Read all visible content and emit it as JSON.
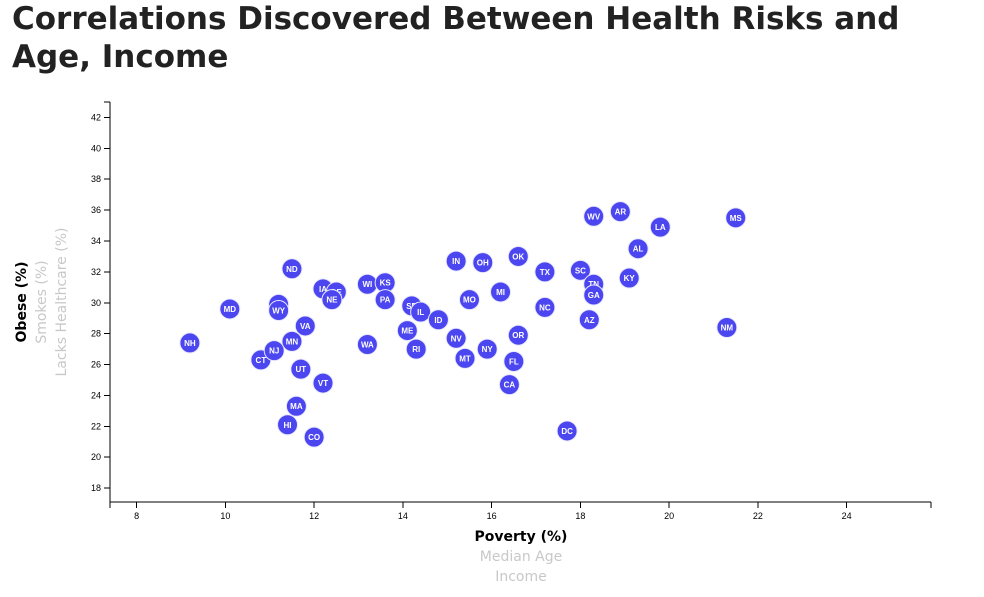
{
  "title": "Correlations Discovered Between Health Risks and Age, Income",
  "colors": {
    "marker": "#4b46f0",
    "active_label": "#000000",
    "inactive_label": "#c8c8c8"
  },
  "axes": {
    "x_labels": [
      {
        "text": "Poverty (%)",
        "active": true
      },
      {
        "text": "Median Age",
        "active": false
      },
      {
        "text": "Income",
        "active": false
      }
    ],
    "y_labels": [
      {
        "text": "Obese (%)",
        "active": true
      },
      {
        "text": "Smokes (%)",
        "active": false
      },
      {
        "text": "Lacks Healthcare (%)",
        "active": false
      }
    ]
  },
  "chart_data": {
    "type": "scatter",
    "title": "Correlations Discovered Between Health Risks and Age, Income",
    "xlabel": "Poverty (%)",
    "ylabel": "Obese (%)",
    "xlim": [
      7.4,
      25.9
    ],
    "ylim": [
      17.1,
      43.0
    ],
    "x_ticks": [
      8,
      10,
      12,
      14,
      16,
      18,
      20,
      22,
      24
    ],
    "y_ticks": [
      18,
      20,
      22,
      24,
      26,
      28,
      30,
      32,
      34,
      36,
      38,
      40,
      42
    ],
    "grid": false,
    "points": [
      {
        "label": "NH",
        "x": 9.2,
        "y": 27.4
      },
      {
        "label": "MD",
        "x": 10.1,
        "y": 29.6
      },
      {
        "label": "CT",
        "x": 10.8,
        "y": 26.3
      },
      {
        "label": "NJ",
        "x": 11.1,
        "y": 26.9
      },
      {
        "label": "AK",
        "x": 11.2,
        "y": 29.9
      },
      {
        "label": "WY",
        "x": 11.2,
        "y": 29.5
      },
      {
        "label": "HI",
        "x": 11.4,
        "y": 22.1
      },
      {
        "label": "ND",
        "x": 11.5,
        "y": 32.2
      },
      {
        "label": "MN",
        "x": 11.5,
        "y": 27.5
      },
      {
        "label": "MA",
        "x": 11.6,
        "y": 23.3
      },
      {
        "label": "UT",
        "x": 11.7,
        "y": 25.7
      },
      {
        "label": "VA",
        "x": 11.8,
        "y": 28.5
      },
      {
        "label": "CO",
        "x": 12.0,
        "y": 21.3
      },
      {
        "label": "IA",
        "x": 12.2,
        "y": 30.9
      },
      {
        "label": "VT",
        "x": 12.2,
        "y": 24.8
      },
      {
        "label": "DE",
        "x": 12.5,
        "y": 30.7
      },
      {
        "label": "NE",
        "x": 12.4,
        "y": 30.2
      },
      {
        "label": "WI",
        "x": 13.2,
        "y": 31.2
      },
      {
        "label": "WA",
        "x": 13.2,
        "y": 27.3
      },
      {
        "label": "KS",
        "x": 13.6,
        "y": 31.3
      },
      {
        "label": "PA",
        "x": 13.6,
        "y": 30.2
      },
      {
        "label": "SD",
        "x": 14.2,
        "y": 29.8
      },
      {
        "label": "ME",
        "x": 14.1,
        "y": 28.2
      },
      {
        "label": "IL",
        "x": 14.4,
        "y": 29.4
      },
      {
        "label": "RI",
        "x": 14.3,
        "y": 27.0
      },
      {
        "label": "ID",
        "x": 14.8,
        "y": 28.9
      },
      {
        "label": "IN",
        "x": 15.2,
        "y": 32.7
      },
      {
        "label": "NV",
        "x": 15.2,
        "y": 27.7
      },
      {
        "label": "MO",
        "x": 15.5,
        "y": 30.2
      },
      {
        "label": "MT",
        "x": 15.4,
        "y": 26.4
      },
      {
        "label": "OH",
        "x": 15.8,
        "y": 32.6
      },
      {
        "label": "NY",
        "x": 15.9,
        "y": 27.0
      },
      {
        "label": "MI",
        "x": 16.2,
        "y": 30.7
      },
      {
        "label": "OK",
        "x": 16.6,
        "y": 33.0
      },
      {
        "label": "OR",
        "x": 16.6,
        "y": 27.9
      },
      {
        "label": "FL",
        "x": 16.5,
        "y": 26.2
      },
      {
        "label": "CA",
        "x": 16.4,
        "y": 24.7
      },
      {
        "label": "TX",
        "x": 17.2,
        "y": 32.0
      },
      {
        "label": "NC",
        "x": 17.2,
        "y": 29.7
      },
      {
        "label": "DC",
        "x": 17.7,
        "y": 21.7
      },
      {
        "label": "SC",
        "x": 18.0,
        "y": 32.1
      },
      {
        "label": "TN",
        "x": 18.3,
        "y": 31.2
      },
      {
        "label": "GA",
        "x": 18.3,
        "y": 30.5
      },
      {
        "label": "AZ",
        "x": 18.2,
        "y": 28.9
      },
      {
        "label": "WV",
        "x": 18.3,
        "y": 35.6
      },
      {
        "label": "AR",
        "x": 18.9,
        "y": 35.9
      },
      {
        "label": "KY",
        "x": 19.1,
        "y": 31.6
      },
      {
        "label": "AL",
        "x": 19.3,
        "y": 33.5
      },
      {
        "label": "LA",
        "x": 19.8,
        "y": 34.9
      },
      {
        "label": "NM",
        "x": 21.3,
        "y": 28.4
      },
      {
        "label": "MS",
        "x": 21.5,
        "y": 35.5
      }
    ]
  }
}
